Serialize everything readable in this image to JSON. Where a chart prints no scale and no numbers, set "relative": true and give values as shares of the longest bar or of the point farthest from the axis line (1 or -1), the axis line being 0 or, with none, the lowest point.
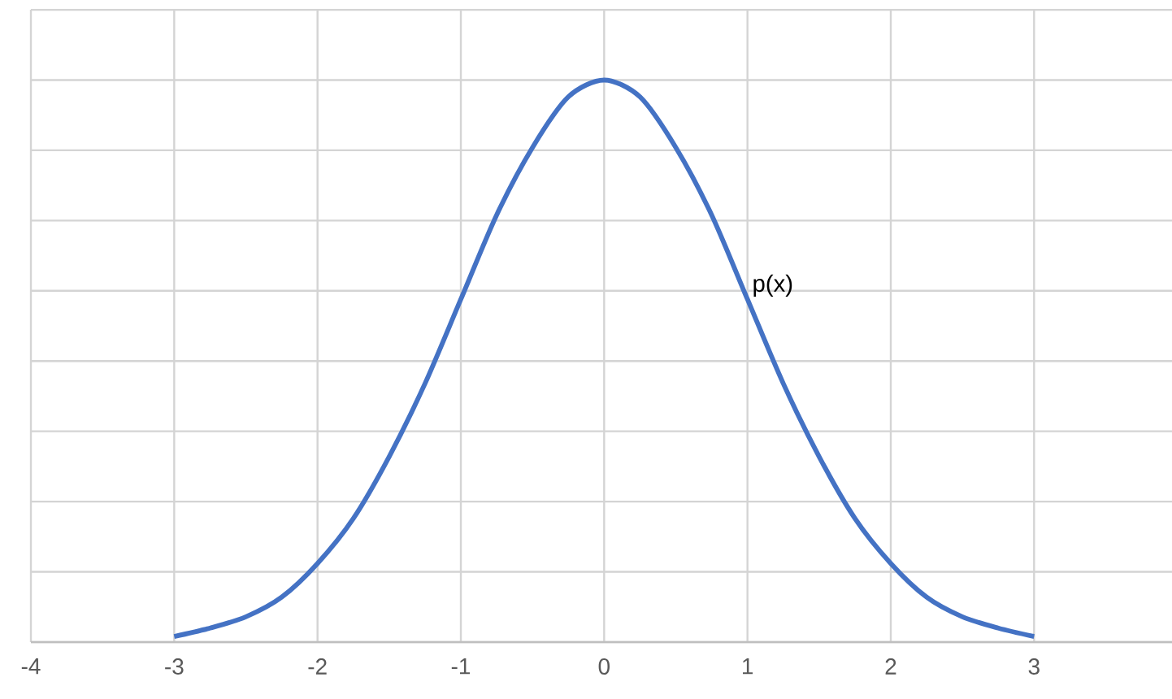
{
  "chart_data": {
    "type": "line",
    "relative": true,
    "x": [
      -3,
      -2.75,
      -2.5,
      -2.25,
      -2,
      -1.75,
      -1.5,
      -1.25,
      -1,
      -0.75,
      -0.5,
      -0.25,
      0,
      0.25,
      0.5,
      0.75,
      1,
      1.25,
      1.5,
      1.75,
      2,
      2.25,
      2.5,
      2.75,
      3
    ],
    "series": [
      {
        "color": "#4472c4",
        "values": [
          0.01,
          0.025,
          0.045,
          0.08,
          0.14,
          0.22,
          0.33,
          0.46,
          0.61,
          0.76,
          0.88,
          0.97,
          1,
          0.97,
          0.88,
          0.76,
          0.61,
          0.46,
          0.33,
          0.22,
          0.14,
          0.08,
          0.045,
          0.025,
          0.01
        ]
      }
    ],
    "xlim": [
      -4,
      4
    ],
    "xticks": [
      -4,
      -3,
      -2,
      -1,
      0,
      1,
      2,
      3
    ],
    "grid": true,
    "marker": "none",
    "line_style": "solid",
    "annotations": [
      {
        "text": "p(x)",
        "x": 1,
        "y": 0.61
      }
    ]
  }
}
